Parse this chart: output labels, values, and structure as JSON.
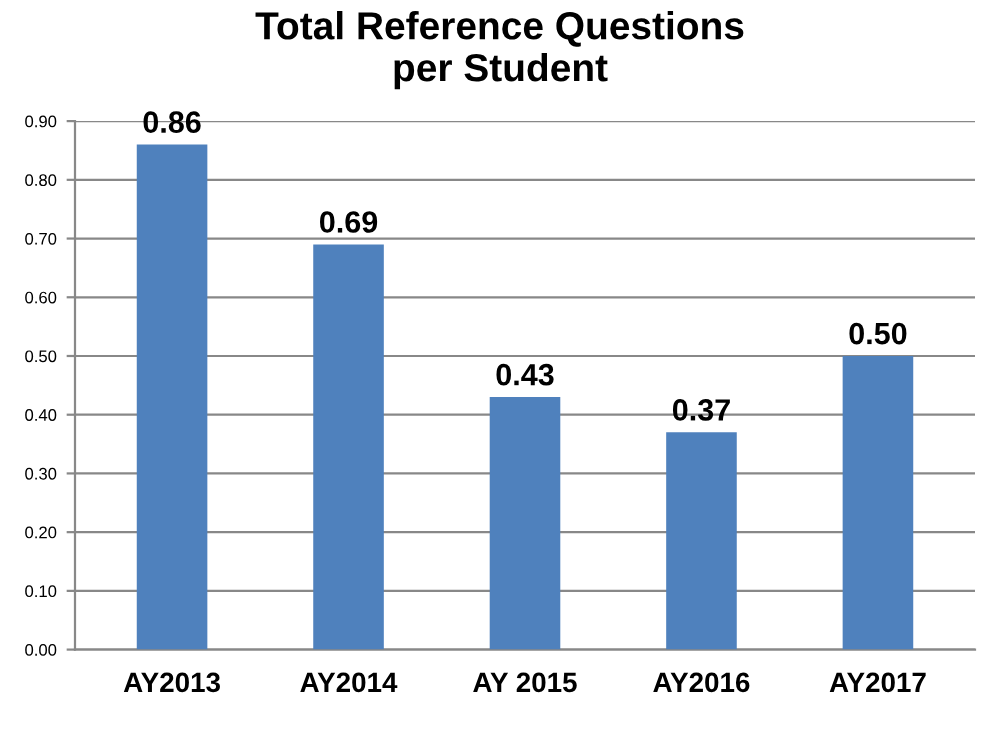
{
  "chart_data": {
    "type": "bar",
    "title": "Total Reference Questions\nper Student",
    "categories": [
      "AY2013",
      "AY2014",
      "AY 2015",
      "AY2016",
      "AY2017"
    ],
    "values": [
      0.86,
      0.69,
      0.43,
      0.37,
      0.5
    ],
    "value_labels": [
      "0.86",
      "0.69",
      "0.43",
      "0.37",
      "0.50"
    ],
    "color": "#4f81bd",
    "ylim": [
      0,
      0.9
    ],
    "yticks": [
      {
        "value": 0,
        "label": "0.00"
      },
      {
        "value": 0.1,
        "label": "0.10"
      },
      {
        "value": 0.2,
        "label": "0.20"
      },
      {
        "value": 0.3,
        "label": "0.30"
      },
      {
        "value": 0.4,
        "label": "0.40"
      },
      {
        "value": 0.5,
        "label": "0.50"
      },
      {
        "value": 0.6,
        "label": "0.60"
      },
      {
        "value": 0.7,
        "label": "0.70"
      },
      {
        "value": 0.8,
        "label": "0.80"
      },
      {
        "value": 0.9,
        "label": "0.90"
      }
    ],
    "grid": "y"
  }
}
